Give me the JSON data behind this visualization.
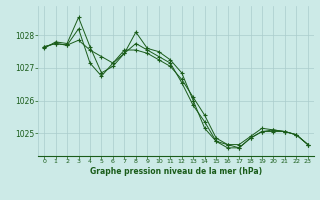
{
  "bg_color": "#cceae7",
  "grid_color": "#aacccc",
  "line_color": "#1a5c1a",
  "xlabel": "Graphe pression niveau de la mer (hPa)",
  "xlabel_color": "#1a5c1a",
  "tick_color": "#1a5c1a",
  "ylim": [
    1024.3,
    1028.9
  ],
  "yticks": [
    1025,
    1026,
    1027,
    1028
  ],
  "xlim": [
    -0.5,
    23.5
  ],
  "xticks": [
    0,
    1,
    2,
    3,
    4,
    5,
    6,
    7,
    8,
    9,
    10,
    11,
    12,
    13,
    14,
    15,
    16,
    17,
    18,
    19,
    20,
    21,
    22,
    23
  ],
  "series": [
    [
      1027.6,
      1027.8,
      1027.75,
      1028.55,
      1027.65,
      1026.85,
      1027.05,
      1027.45,
      1028.1,
      1027.6,
      1027.5,
      1027.25,
      1026.85,
      1026.0,
      1025.15,
      1024.75,
      1024.55,
      1024.55,
      1024.85,
      1025.05,
      1025.05,
      1025.05,
      1024.95,
      1024.65
    ],
    [
      1027.65,
      1027.75,
      1027.7,
      1027.85,
      1027.55,
      1027.35,
      1027.15,
      1027.55,
      1027.55,
      1027.45,
      1027.25,
      1027.05,
      1026.65,
      1026.1,
      1025.55,
      1024.85,
      1024.65,
      1024.65,
      1024.9,
      1025.15,
      1025.1,
      1025.05,
      1024.95,
      1024.65
    ],
    [
      1027.65,
      1027.75,
      1027.7,
      1028.2,
      1027.15,
      1026.75,
      1027.15,
      1027.45,
      1027.75,
      1027.55,
      1027.35,
      1027.15,
      1026.55,
      1025.85,
      1025.35,
      1024.75,
      1024.65,
      1024.55,
      1024.85,
      1025.05,
      1025.1,
      1025.05,
      1024.95,
      1024.65
    ]
  ]
}
